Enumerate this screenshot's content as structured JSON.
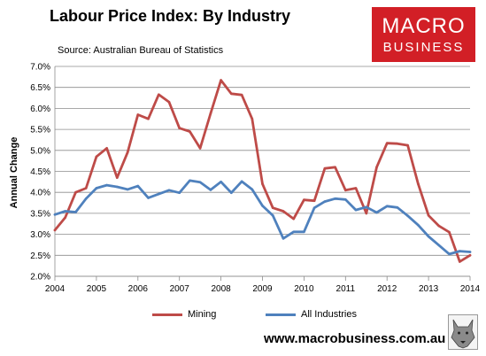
{
  "header": {
    "title": "Labour Price Index: By Industry",
    "source": "Source: Australian Bureau of Statistics"
  },
  "logo": {
    "line1": "MACRO",
    "line2": "BUSINESS"
  },
  "footer": {
    "url": "www.macrobusiness.com.au"
  },
  "colors": {
    "mining": "#be4b48",
    "all": "#4f81bd",
    "logo": "#d21f26"
  },
  "chart_data": {
    "type": "line",
    "title": "Labour Price Index: By Industry",
    "xlabel": "",
    "ylabel": "Annual Change",
    "xlim": [
      2004,
      2014
    ],
    "ylim": [
      0.02,
      0.07
    ],
    "x_ticks": [
      "2004",
      "2005",
      "2006",
      "2007",
      "2008",
      "2009",
      "2010",
      "2011",
      "2012",
      "2013",
      "2014"
    ],
    "y_ticks": [
      "2.0%",
      "2.5%",
      "3.0%",
      "3.5%",
      "4.0%",
      "4.5%",
      "5.0%",
      "5.5%",
      "6.0%",
      "6.5%",
      "7.0%"
    ],
    "grid": "horizontal",
    "legend": "bottom",
    "series": [
      {
        "name": "Mining",
        "color": "#be4b48",
        "x": [
          2004.0,
          2004.25,
          2004.5,
          2004.75,
          2005.0,
          2005.25,
          2005.5,
          2005.75,
          2006.0,
          2006.25,
          2006.5,
          2006.75,
          2007.0,
          2007.25,
          2007.5,
          2007.75,
          2008.0,
          2008.25,
          2008.5,
          2008.75,
          2009.0,
          2009.25,
          2009.5,
          2009.75,
          2010.0,
          2010.25,
          2010.5,
          2010.75,
          2011.0,
          2011.25,
          2011.5,
          2011.75,
          2012.0,
          2012.25,
          2012.5,
          2012.75,
          2013.0,
          2013.25,
          2013.5,
          2013.75,
          2014.0
        ],
        "values": [
          0.031,
          0.034,
          0.04,
          0.041,
          0.0485,
          0.0505,
          0.0435,
          0.0495,
          0.0585,
          0.0575,
          0.0633,
          0.0615,
          0.0553,
          0.0545,
          0.0505,
          0.0588,
          0.0667,
          0.0635,
          0.0632,
          0.0575,
          0.042,
          0.0363,
          0.0355,
          0.0337,
          0.0382,
          0.038,
          0.0457,
          0.046,
          0.0405,
          0.041,
          0.035,
          0.046,
          0.0517,
          0.0516,
          0.0512,
          0.042,
          0.0345,
          0.032,
          0.0305,
          0.0235,
          0.025
        ]
      },
      {
        "name": "All Industries",
        "color": "#4f81bd",
        "x": [
          2004.0,
          2004.25,
          2004.5,
          2004.75,
          2005.0,
          2005.25,
          2005.5,
          2005.75,
          2006.0,
          2006.25,
          2006.5,
          2006.75,
          2007.0,
          2007.25,
          2007.5,
          2007.75,
          2008.0,
          2008.25,
          2008.5,
          2008.75,
          2009.0,
          2009.25,
          2009.5,
          2009.75,
          2010.0,
          2010.25,
          2010.5,
          2010.75,
          2011.0,
          2011.25,
          2011.5,
          2011.75,
          2012.0,
          2012.25,
          2012.5,
          2012.75,
          2013.0,
          2013.25,
          2013.5,
          2013.75,
          2014.0
        ],
        "values": [
          0.0347,
          0.0355,
          0.0353,
          0.0385,
          0.041,
          0.0417,
          0.0413,
          0.0407,
          0.0415,
          0.0387,
          0.0396,
          0.0405,
          0.0399,
          0.0428,
          0.0424,
          0.0406,
          0.0425,
          0.0399,
          0.0426,
          0.0407,
          0.0368,
          0.0345,
          0.029,
          0.0306,
          0.0306,
          0.0363,
          0.0378,
          0.0385,
          0.0383,
          0.0358,
          0.0365,
          0.0352,
          0.0367,
          0.0364,
          0.0344,
          0.0322,
          0.0295,
          0.0274,
          0.0253,
          0.026,
          0.0258
        ]
      }
    ]
  }
}
